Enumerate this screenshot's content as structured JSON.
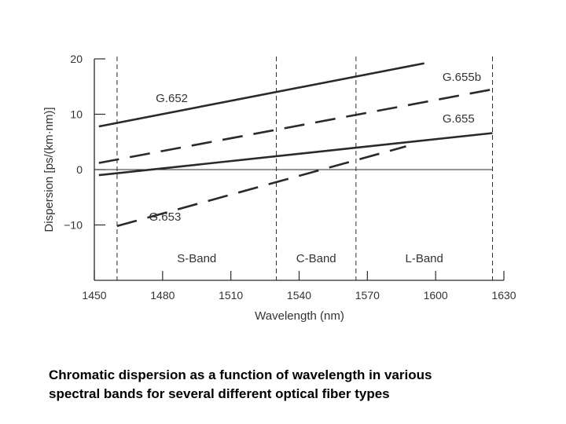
{
  "chart_data": {
    "type": "line",
    "title": "",
    "xlabel": "Wavelength (nm)",
    "ylabel": "Dispersion [ps/(km·nm)]",
    "xlim": [
      1450,
      1630
    ],
    "ylim": [
      -20,
      20
    ],
    "x_ticks": [
      1450,
      1480,
      1510,
      1540,
      1570,
      1600,
      1630
    ],
    "y_ticks": [
      {
        "value": 20,
        "label": "20"
      },
      {
        "value": 10,
        "label": "10"
      },
      {
        "value": 0,
        "label": "0"
      },
      {
        "value": -10,
        "label": "−10"
      }
    ],
    "zero_line": true,
    "series": [
      {
        "name": "G.652",
        "style": "solid",
        "x": [
          1452,
          1595
        ],
        "y": [
          7.8,
          19.2
        ],
        "label_at": [
          1477,
          12.2
        ]
      },
      {
        "name": "G.655b",
        "style": "dashed",
        "x": [
          1452,
          1625
        ],
        "y": [
          1.2,
          14.5
        ],
        "label_at": [
          1603,
          16.0
        ]
      },
      {
        "name": "G.655",
        "style": "solid",
        "x": [
          1452,
          1625
        ],
        "y": [
          -1.0,
          6.6
        ],
        "label_at": [
          1603,
          8.5
        ]
      },
      {
        "name": "G.653",
        "style": "dashed",
        "x": [
          1460,
          1587
        ],
        "y": [
          -10.2,
          4.2
        ],
        "label_at": [
          1474,
          -9.2
        ]
      }
    ],
    "bands": [
      {
        "name": "S-Band",
        "from": 1460,
        "to": 1530
      },
      {
        "name": "C-Band",
        "from": 1530,
        "to": 1565
      },
      {
        "name": "L-Band",
        "from": 1565,
        "to": 1625
      }
    ]
  },
  "caption": {
    "line1": "Chromatic dispersion as a function of wavelength in various",
    "line2": "spectral bands for several different optical fiber types"
  },
  "colors": {
    "ink": "#2a2a2a",
    "background": "#ffffff"
  }
}
